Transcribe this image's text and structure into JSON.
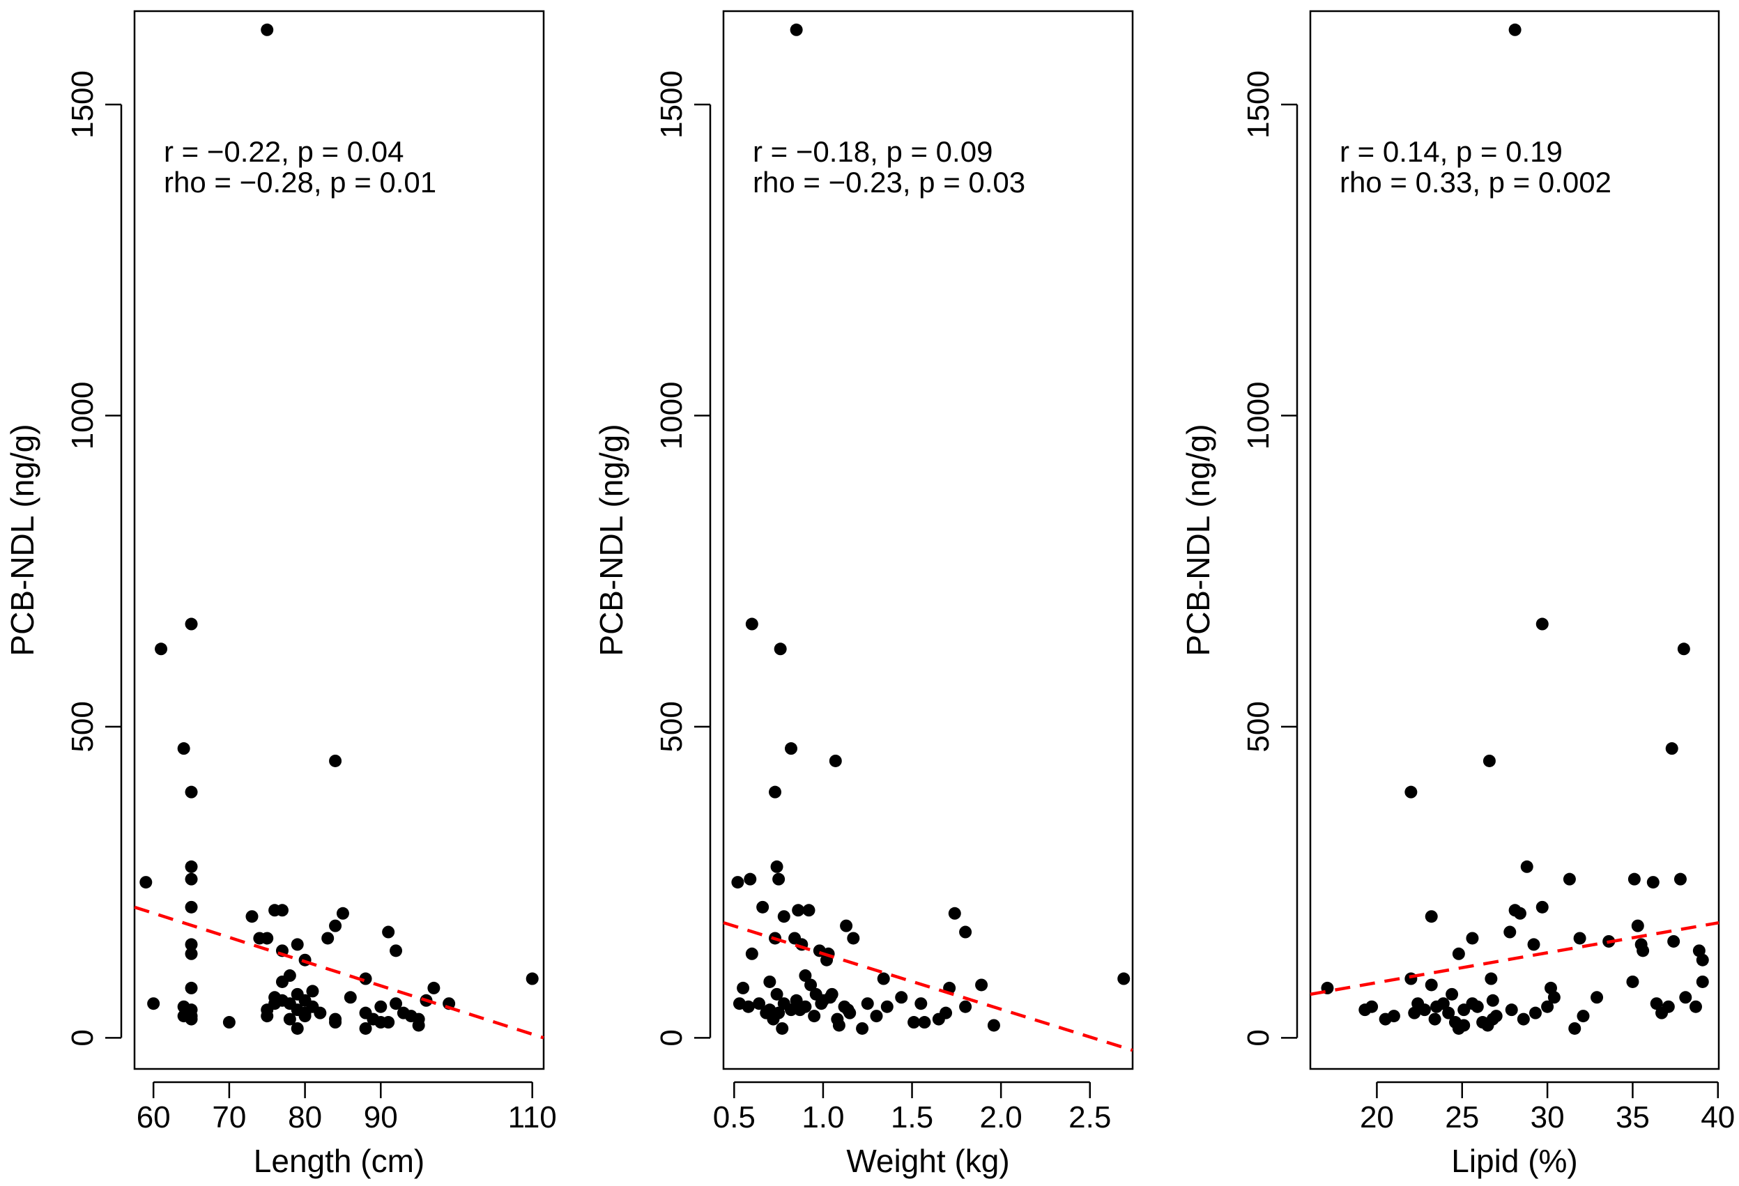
{
  "chart_data": [
    {
      "type": "scatter",
      "title": "",
      "xlabel": "Length (cm)",
      "ylabel": "PCB-NDL (ng/g)",
      "xlim": [
        57.5,
        111.5
      ],
      "ylim": [
        -50,
        1650
      ],
      "xticks": [
        60,
        70,
        80,
        90,
        110
      ],
      "xtick_labels": [
        "60",
        "70",
        "80",
        "90",
        "110"
      ],
      "yticks": [
        0,
        500,
        1000,
        1500
      ],
      "ytick_labels": [
        "0",
        "500",
        "1000",
        "1500"
      ],
      "annotations": [
        "r = −0.22, p = 0.04",
        "rho = −0.28, p = 0.01"
      ],
      "trend_line": {
        "x": [
          57.5,
          111.5
        ],
        "y": [
          210,
          0
        ]
      },
      "points": [
        [
          75,
          1620
        ],
        [
          65,
          665
        ],
        [
          61,
          625
        ],
        [
          64,
          465
        ],
        [
          84,
          445
        ],
        [
          65,
          395
        ],
        [
          65,
          275
        ],
        [
          65,
          255
        ],
        [
          59,
          250
        ],
        [
          65,
          210
        ],
        [
          76,
          205
        ],
        [
          77,
          205
        ],
        [
          85,
          200
        ],
        [
          73,
          195
        ],
        [
          84,
          180
        ],
        [
          91,
          170
        ],
        [
          74,
          160
        ],
        [
          75,
          160
        ],
        [
          83,
          160
        ],
        [
          79,
          150
        ],
        [
          65,
          150
        ],
        [
          65,
          135
        ],
        [
          92,
          140
        ],
        [
          77,
          140
        ],
        [
          80,
          125
        ],
        [
          78,
          100
        ],
        [
          77,
          90
        ],
        [
          88,
          95
        ],
        [
          97,
          80
        ],
        [
          110,
          95
        ],
        [
          65,
          80
        ],
        [
          81,
          75
        ],
        [
          79,
          70
        ],
        [
          86,
          65
        ],
        [
          80,
          60
        ],
        [
          77,
          60
        ],
        [
          60,
          55
        ],
        [
          76,
          55
        ],
        [
          78,
          55
        ],
        [
          81,
          50
        ],
        [
          92,
          55
        ],
        [
          99,
          55
        ],
        [
          96,
          60
        ],
        [
          90,
          50
        ],
        [
          64,
          50
        ],
        [
          65,
          45
        ],
        [
          75,
          45
        ],
        [
          79,
          45
        ],
        [
          82,
          40
        ],
        [
          88,
          40
        ],
        [
          93,
          40
        ],
        [
          65,
          35
        ],
        [
          64,
          35
        ],
        [
          75,
          35
        ],
        [
          80,
          35
        ],
        [
          84,
          30
        ],
        [
          89,
          30
        ],
        [
          95,
          30
        ],
        [
          70,
          25
        ],
        [
          90,
          25
        ],
        [
          91,
          25
        ],
        [
          95,
          20
        ],
        [
          84,
          25
        ],
        [
          88,
          15
        ],
        [
          79,
          15
        ],
        [
          65,
          30
        ],
        [
          76,
          65
        ],
        [
          80,
          40
        ],
        [
          78,
          30
        ],
        [
          94,
          35
        ]
      ]
    },
    {
      "type": "scatter",
      "title": "",
      "xlabel": "Weight (kg)",
      "ylabel": "PCB-NDL (ng/g)",
      "xlim": [
        0.44,
        2.74
      ],
      "ylim": [
        -50,
        1650
      ],
      "xticks": [
        0.5,
        1.0,
        1.5,
        2.0,
        2.5
      ],
      "xtick_labels": [
        "0.5",
        "1.0",
        "1.5",
        "2.0",
        "2.5"
      ],
      "yticks": [
        0,
        500,
        1000,
        1500
      ],
      "ytick_labels": [
        "0",
        "500",
        "1000",
        "1500"
      ],
      "annotations": [
        "r = −0.18, p = 0.09",
        "rho = −0.23, p = 0.03"
      ],
      "trend_line": {
        "x": [
          0.44,
          2.74
        ],
        "y": [
          185,
          -20
        ]
      },
      "points": [
        [
          0.85,
          1620
        ],
        [
          0.6,
          665
        ],
        [
          0.76,
          625
        ],
        [
          0.82,
          465
        ],
        [
          1.07,
          445
        ],
        [
          0.73,
          395
        ],
        [
          0.74,
          275
        ],
        [
          0.75,
          255
        ],
        [
          0.52,
          250
        ],
        [
          0.59,
          255
        ],
        [
          0.66,
          210
        ],
        [
          0.86,
          205
        ],
        [
          0.92,
          205
        ],
        [
          1.74,
          200
        ],
        [
          0.78,
          195
        ],
        [
          1.13,
          180
        ],
        [
          1.8,
          170
        ],
        [
          0.73,
          160
        ],
        [
          0.84,
          160
        ],
        [
          1.17,
          160
        ],
        [
          0.88,
          150
        ],
        [
          0.98,
          140
        ],
        [
          1.03,
          135
        ],
        [
          0.6,
          135
        ],
        [
          1.02,
          125
        ],
        [
          0.9,
          100
        ],
        [
          1.34,
          95
        ],
        [
          0.55,
          80
        ],
        [
          1.71,
          80
        ],
        [
          1.89,
          85
        ],
        [
          2.69,
          95
        ],
        [
          0.7,
          90
        ],
        [
          0.74,
          70
        ],
        [
          0.96,
          70
        ],
        [
          1.05,
          70
        ],
        [
          1.44,
          65
        ],
        [
          0.53,
          55
        ],
        [
          0.64,
          55
        ],
        [
          0.7,
          45
        ],
        [
          0.78,
          55
        ],
        [
          0.85,
          60
        ],
        [
          0.9,
          50
        ],
        [
          0.99,
          55
        ],
        [
          1.12,
          50
        ],
        [
          1.25,
          55
        ],
        [
          1.55,
          55
        ],
        [
          1.8,
          50
        ],
        [
          0.68,
          40
        ],
        [
          0.75,
          40
        ],
        [
          0.82,
          45
        ],
        [
          0.95,
          35
        ],
        [
          1.08,
          30
        ],
        [
          1.15,
          40
        ],
        [
          1.3,
          35
        ],
        [
          1.51,
          25
        ],
        [
          1.57,
          25
        ],
        [
          1.69,
          40
        ],
        [
          0.72,
          30
        ],
        [
          0.77,
          15
        ],
        [
          1.09,
          20
        ],
        [
          1.22,
          15
        ],
        [
          1.96,
          20
        ],
        [
          1.36,
          50
        ],
        [
          0.93,
          85
        ],
        [
          1.0,
          60
        ],
        [
          0.58,
          50
        ],
        [
          1.14,
          45
        ],
        [
          1.65,
          30
        ],
        [
          0.87,
          45
        ],
        [
          1.04,
          65
        ]
      ]
    },
    {
      "type": "scatter",
      "title": "",
      "xlabel": "Lipid (%)",
      "ylabel": "PCB-NDL (ng/g)",
      "xlim": [
        16.1,
        40.05
      ],
      "ylim": [
        -50,
        1650
      ],
      "xticks": [
        20,
        25,
        30,
        35,
        40
      ],
      "xtick_labels": [
        "20",
        "25",
        "30",
        "35",
        "40"
      ],
      "yticks": [
        0,
        500,
        1000,
        1500
      ],
      "ytick_labels": [
        "0",
        "500",
        "1000",
        "1500"
      ],
      "annotations": [
        "r = 0.14, p = 0.19",
        "rho = 0.33, p = 0.002"
      ],
      "trend_line": {
        "x": [
          16.1,
          40.05
        ],
        "y": [
          70,
          185
        ]
      },
      "points": [
        [
          28.1,
          1620
        ],
        [
          29.7,
          665
        ],
        [
          38,
          625
        ],
        [
          37.3,
          465
        ],
        [
          26.6,
          445
        ],
        [
          22,
          395
        ],
        [
          28.8,
          275
        ],
        [
          37.8,
          255
        ],
        [
          31.3,
          255
        ],
        [
          35.1,
          255
        ],
        [
          36.2,
          250
        ],
        [
          29.7,
          210
        ],
        [
          28.1,
          205
        ],
        [
          28.4,
          200
        ],
        [
          23.2,
          195
        ],
        [
          35.3,
          180
        ],
        [
          27.8,
          170
        ],
        [
          25.6,
          160
        ],
        [
          31.9,
          160
        ],
        [
          33.6,
          155
        ],
        [
          29.2,
          150
        ],
        [
          35.6,
          140
        ],
        [
          35.5,
          150
        ],
        [
          37.4,
          155
        ],
        [
          24.8,
          135
        ],
        [
          38.9,
          140
        ],
        [
          39.1,
          125
        ],
        [
          17.1,
          80
        ],
        [
          22,
          95
        ],
        [
          23.2,
          85
        ],
        [
          26.7,
          95
        ],
        [
          30.2,
          80
        ],
        [
          32.9,
          65
        ],
        [
          38.1,
          65
        ],
        [
          39.1,
          90
        ],
        [
          24.4,
          70
        ],
        [
          25.6,
          55
        ],
        [
          26.8,
          60
        ],
        [
          30.4,
          65
        ],
        [
          19.3,
          45
        ],
        [
          19.7,
          50
        ],
        [
          22.4,
          55
        ],
        [
          22.8,
          45
        ],
        [
          23.5,
          50
        ],
        [
          24.2,
          40
        ],
        [
          25.1,
          45
        ],
        [
          25.9,
          50
        ],
        [
          27.9,
          45
        ],
        [
          30,
          50
        ],
        [
          35,
          90
        ],
        [
          36.4,
          55
        ],
        [
          37.1,
          50
        ],
        [
          38.7,
          50
        ],
        [
          20.5,
          30
        ],
        [
          21,
          35
        ],
        [
          22.2,
          40
        ],
        [
          23.4,
          30
        ],
        [
          24.6,
          25
        ],
        [
          25.1,
          20
        ],
        [
          26.2,
          25
        ],
        [
          26.8,
          30
        ],
        [
          28.6,
          30
        ],
        [
          29.3,
          40
        ],
        [
          31.6,
          15
        ],
        [
          32.1,
          35
        ],
        [
          24.8,
          15
        ],
        [
          26.5,
          20
        ],
        [
          36.7,
          40
        ],
        [
          23.9,
          55
        ],
        [
          27,
          35
        ]
      ]
    }
  ]
}
